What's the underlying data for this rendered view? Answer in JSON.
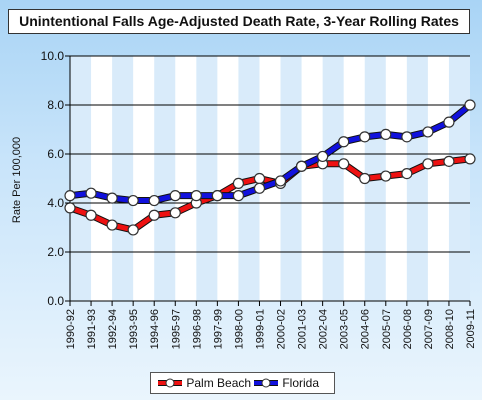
{
  "chart_data": {
    "type": "line",
    "title": "Unintentional Falls Age-Adjusted Death Rate, 3-Year Rolling Rates",
    "ylabel": "Rate Per 100,000",
    "xlabel": "",
    "ylim": [
      0,
      10
    ],
    "yticks": [
      "0.0",
      "2.0",
      "4.0",
      "6.0",
      "8.0",
      "10.0"
    ],
    "ytick_values": [
      0,
      2,
      4,
      6,
      8,
      10
    ],
    "grid": true,
    "legend_position": "bottom",
    "categories": [
      "1990-92",
      "1991-93",
      "1992-94",
      "1993-95",
      "1994-96",
      "1995-97",
      "1996-98",
      "1997-99",
      "1998-00",
      "1999-01",
      "2000-02",
      "2001-03",
      "2002-04",
      "2003-05",
      "2004-06",
      "2005-07",
      "2006-08",
      "2007-09",
      "2008-10",
      "2009-11"
    ],
    "series": [
      {
        "name": "Palm Beach",
        "color": "#ee1111",
        "values": [
          3.8,
          3.5,
          3.1,
          2.9,
          3.5,
          3.6,
          4.0,
          4.3,
          4.8,
          5.0,
          4.8,
          5.5,
          5.6,
          5.6,
          5.0,
          5.1,
          5.2,
          5.6,
          5.7,
          5.8
        ]
      },
      {
        "name": "Florida",
        "color": "#1111dd",
        "values": [
          4.3,
          4.4,
          4.2,
          4.1,
          4.1,
          4.3,
          4.3,
          4.3,
          4.3,
          4.6,
          4.9,
          5.5,
          5.9,
          6.5,
          6.7,
          6.8,
          6.7,
          6.9,
          7.3,
          8.0
        ]
      }
    ]
  }
}
